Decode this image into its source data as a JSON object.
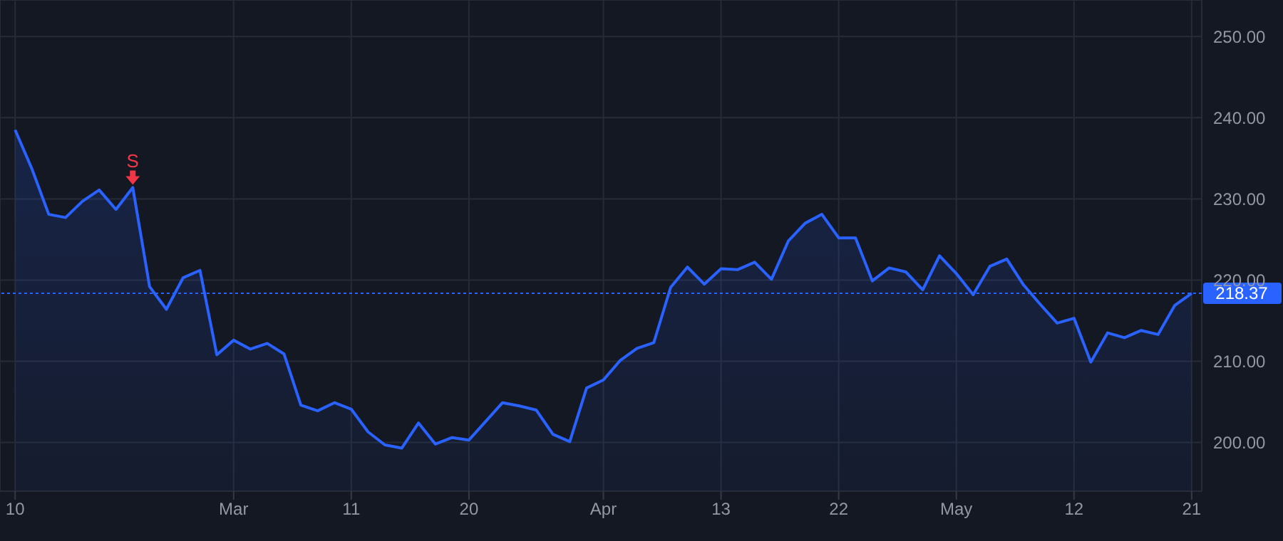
{
  "chart_data": {
    "type": "area",
    "categories": [
      "10",
      null,
      null,
      null,
      null,
      null,
      null,
      null,
      null,
      null,
      null,
      null,
      null,
      "Mar",
      null,
      null,
      null,
      null,
      null,
      null,
      "11",
      null,
      null,
      null,
      null,
      null,
      null,
      "20",
      null,
      null,
      null,
      null,
      null,
      null,
      null,
      "Apr",
      null,
      null,
      null,
      null,
      null,
      null,
      "13",
      null,
      null,
      null,
      null,
      null,
      null,
      "22",
      null,
      null,
      null,
      null,
      null,
      null,
      "May",
      null,
      null,
      null,
      null,
      null,
      null,
      "12",
      null,
      null,
      null,
      null,
      null,
      null,
      "21"
    ],
    "series": [
      {
        "color": "#2962ff",
        "values": [
          238.5,
          233.7,
          228.1,
          227.7,
          229.7,
          231.1,
          228.7,
          231.4,
          219.2,
          216.4,
          220.3,
          221.2,
          210.8,
          212.6,
          211.5,
          212.2,
          210.9,
          204.6,
          203.9,
          204.9,
          204.1,
          201.3,
          199.7,
          199.3,
          202.4,
          199.8,
          200.6,
          200.3,
          202.6,
          204.9,
          204.5,
          204.0,
          201.0,
          200.1,
          206.7,
          207.7,
          210.1,
          211.6,
          212.3,
          219.1,
          221.6,
          219.5,
          221.4,
          221.3,
          222.2,
          220.1,
          224.8,
          227.0,
          228.1,
          225.2,
          225.2,
          219.9,
          221.5,
          221.0,
          218.8,
          223.0,
          220.8,
          218.2,
          221.7,
          222.6,
          219.4,
          217.0,
          214.7,
          215.3,
          209.9,
          213.5,
          212.9,
          213.8,
          213.3,
          216.9,
          218.37
        ]
      }
    ],
    "ylim": [
      194,
      254.5
    ],
    "yticks": [
      {
        "value": 200,
        "label": "200.00"
      },
      {
        "value": 210,
        "label": "210.00"
      },
      {
        "value": 220,
        "label": "220.00"
      },
      {
        "value": 230,
        "label": "230.00"
      },
      {
        "value": 240,
        "label": "240.00"
      },
      {
        "value": 250,
        "label": "250.00"
      }
    ],
    "grid": true,
    "ref_lines": [
      {
        "axis": "y",
        "value": 218.37,
        "label": "218.37",
        "color": "#2962ff",
        "line_style": "dotted"
      }
    ],
    "annotations": [
      {
        "text": "S",
        "y": 231.4
      }
    ]
  }
}
